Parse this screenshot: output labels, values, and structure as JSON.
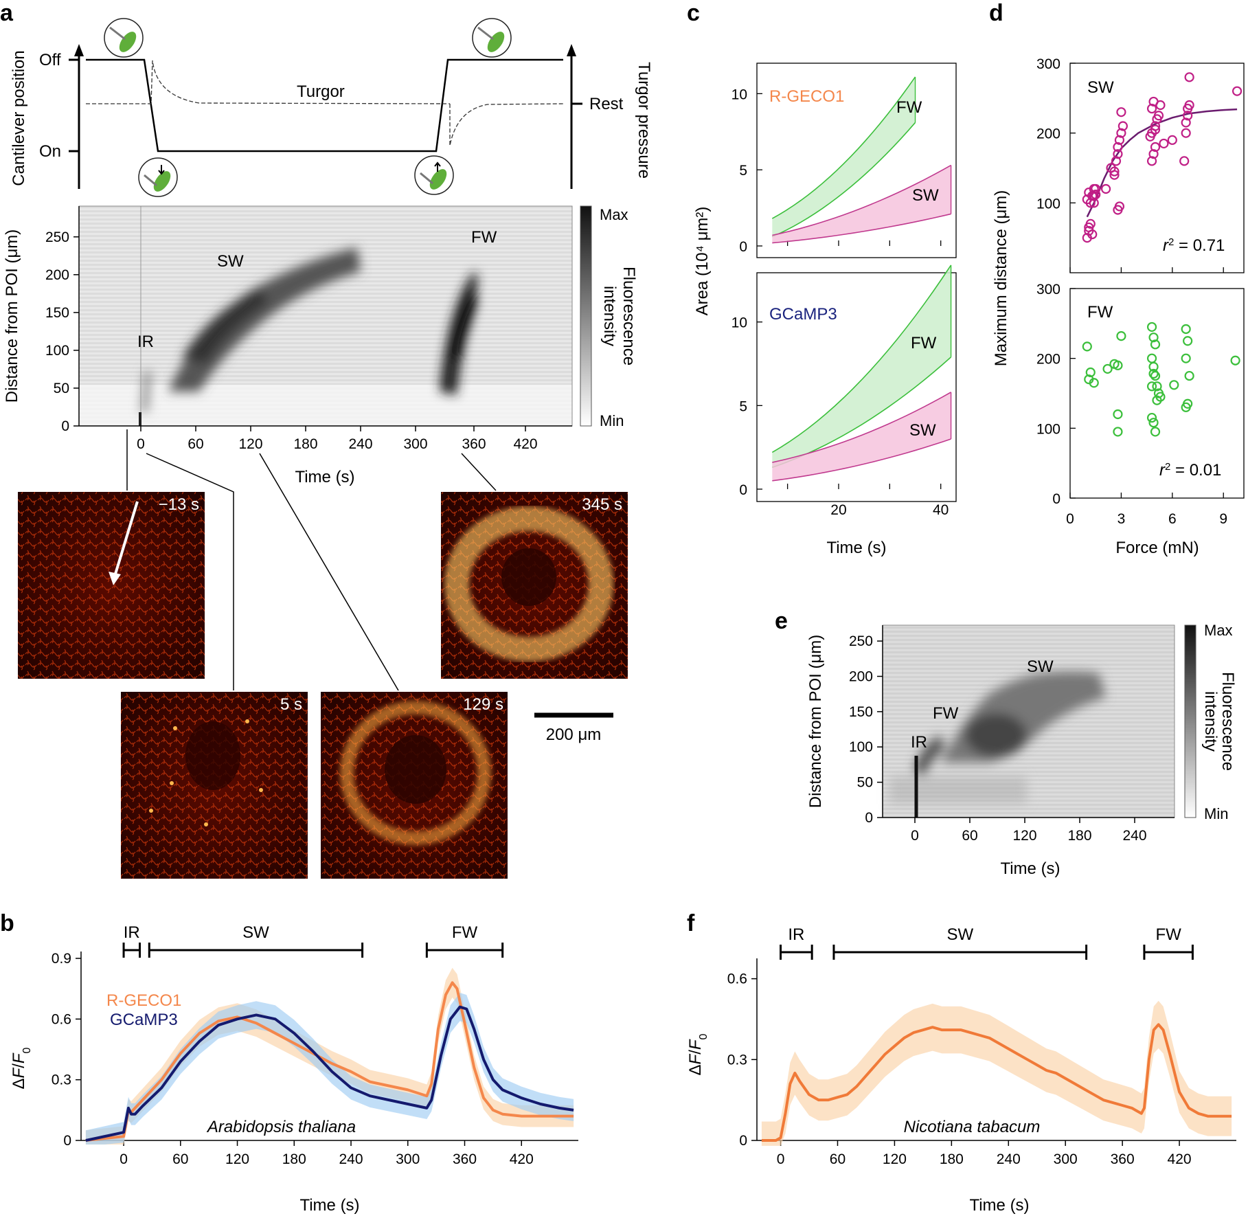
{
  "panel_letters": {
    "a": "a",
    "b": "b",
    "c": "c",
    "d": "d",
    "e": "e",
    "f": "f"
  },
  "panel_a": {
    "schematic": {
      "off": "Off",
      "on": "On",
      "left_axis": "Cantilever position",
      "right_axis": "Turgor pressure",
      "turgor": "Turgor",
      "rest": "Rest"
    },
    "kymograph": {
      "ylabel": "Distance from POI (μm)",
      "xlabel": "Time (s)",
      "yticks": [
        "0",
        "50",
        "100",
        "150",
        "200",
        "250"
      ],
      "xticks": [
        "0",
        "60",
        "120",
        "180",
        "240",
        "300",
        "360",
        "420"
      ],
      "labels": {
        "sw": "SW",
        "fw": "FW",
        "ir": "IR"
      },
      "colorbar": {
        "max": "Max",
        "min": "Min",
        "title_line1": "Fluorescence",
        "title_line2": "intensity"
      }
    },
    "images": [
      {
        "time": "−13 s"
      },
      {
        "time": "5 s"
      },
      {
        "time": "129 s"
      },
      {
        "time": "345 s"
      }
    ],
    "scalebar": "200 μm"
  },
  "chart_data": [
    {
      "id": "b",
      "type": "line",
      "xlabel": "Time (s)",
      "ylabel": "ΔF/F0",
      "xlim": [
        -45,
        480
      ],
      "ylim": [
        0,
        0.9
      ],
      "xticks": [
        "0",
        "60",
        "120",
        "180",
        "240",
        "300",
        "360",
        "420"
      ],
      "yticks": [
        "0",
        "0.3",
        "0.6",
        "0.9"
      ],
      "annotation": "Arabidopsis thaliana",
      "phases": [
        {
          "label": "IR",
          "start": 0,
          "end": 17
        },
        {
          "label": "SW",
          "start": 27,
          "end": 252
        },
        {
          "label": "FW",
          "start": 320,
          "end": 400
        }
      ],
      "series": [
        {
          "name": "R-GECO1",
          "color": "#f4874b",
          "x": [
            -40,
            -20,
            0,
            5,
            8,
            12,
            20,
            40,
            60,
            80,
            100,
            120,
            140,
            160,
            180,
            200,
            220,
            240,
            260,
            280,
            300,
            320,
            325,
            332,
            340,
            347,
            352,
            360,
            370,
            380,
            390,
            400,
            420,
            440,
            460,
            475
          ],
          "y": [
            0.0,
            0.01,
            0.02,
            0.15,
            0.14,
            0.16,
            0.2,
            0.3,
            0.43,
            0.53,
            0.59,
            0.61,
            0.58,
            0.53,
            0.48,
            0.43,
            0.38,
            0.34,
            0.29,
            0.27,
            0.25,
            0.22,
            0.28,
            0.55,
            0.72,
            0.78,
            0.75,
            0.58,
            0.36,
            0.21,
            0.15,
            0.13,
            0.12,
            0.12,
            0.12,
            0.12
          ],
          "band": 0.05
        },
        {
          "name": "GCaMP3",
          "color": "#141a6e",
          "x": [
            -40,
            -20,
            0,
            5,
            8,
            12,
            20,
            40,
            60,
            80,
            100,
            120,
            140,
            160,
            180,
            200,
            220,
            240,
            260,
            280,
            300,
            320,
            325,
            335,
            345,
            355,
            362,
            370,
            380,
            390,
            400,
            420,
            440,
            460,
            475
          ],
          "y": [
            0.0,
            0.02,
            0.04,
            0.16,
            0.13,
            0.13,
            0.17,
            0.26,
            0.39,
            0.49,
            0.57,
            0.6,
            0.62,
            0.6,
            0.53,
            0.44,
            0.34,
            0.26,
            0.22,
            0.2,
            0.18,
            0.16,
            0.2,
            0.42,
            0.6,
            0.66,
            0.65,
            0.55,
            0.4,
            0.3,
            0.25,
            0.21,
            0.18,
            0.16,
            0.15
          ],
          "band": 0.05
        }
      ]
    },
    {
      "id": "c",
      "type": "area",
      "xlabel": "Time (s)",
      "ylabel": "Area (10⁴ μm²)",
      "xticks": [
        "20",
        "40"
      ],
      "subplots": [
        {
          "title": "R-GECO1",
          "title_color": "#f4874b",
          "xlim": [
            4,
            43
          ],
          "ylim": [
            0,
            12
          ],
          "yticks": [
            "0",
            "5",
            "10"
          ],
          "series": [
            {
              "name": "FW",
              "x": [
                7,
                35
              ],
              "upper": [
                1.8,
                11.1
              ],
              "lower": [
                0.6,
                8.1
              ],
              "color": "#3bbf3b",
              "fill": "#cdeecd"
            },
            {
              "name": "SW",
              "x": [
                7,
                42
              ],
              "upper": [
                0.7,
                5.3
              ],
              "lower": [
                0.2,
                2.1
              ],
              "color": "#c0398e",
              "fill": "#f6c3dd"
            }
          ]
        },
        {
          "title": "GCaMP3",
          "title_color": "#1a237e",
          "xlim": [
            4,
            43
          ],
          "ylim": [
            0,
            12
          ],
          "yticks": [
            "0",
            "5",
            "10"
          ],
          "series": [
            {
              "name": "FW",
              "x": [
                7,
                42
              ],
              "upper": [
                2.2,
                13.4
              ],
              "lower": [
                1.3,
                7.9
              ],
              "color": "#3bbf3b",
              "fill": "#cdeecd"
            },
            {
              "name": "SW",
              "x": [
                7,
                42
              ],
              "upper": [
                1.6,
                5.8
              ],
              "lower": [
                0.5,
                3.0
              ],
              "color": "#c0398e",
              "fill": "#f6c3dd"
            }
          ]
        }
      ]
    },
    {
      "id": "d",
      "type": "scatter",
      "xlabel": "Force (mN)",
      "ylabel": "Maximum distance (μm)",
      "xticks": [
        "0",
        "3",
        "6",
        "9"
      ],
      "subplots": [
        {
          "title": "SW",
          "r2_label": "r",
          "r2_value": " = 0.71",
          "color": "#c01f86",
          "xlim": [
            0,
            10.2
          ],
          "ylim": [
            0,
            300
          ],
          "yticks": [
            "100",
            "200",
            "300"
          ],
          "fit": {
            "x": [
              1.0,
              1.5,
              2.0,
              2.5,
              3.0,
              3.5,
              4.0,
              5.0,
              6.0,
              7.0,
              8.0,
              9.0,
              9.8
            ],
            "y": [
              80,
              105,
              135,
              160,
              178,
              190,
              200,
              213,
              222,
              228,
              231,
              233,
              234
            ]
          },
          "x": [
            1.0,
            1.1,
            1.1,
            1.2,
            1.3,
            1.4,
            1.4,
            1.5,
            1.0,
            1.1,
            1.2,
            1.3,
            1.4,
            1.5,
            2.1,
            2.4,
            2.6,
            2.7,
            2.8,
            2.8,
            2.9,
            3.0,
            3.1,
            3.0,
            2.9,
            2.8,
            4.8,
            4.9,
            5.0,
            4.7,
            4.8,
            5.0,
            5.1,
            5.2,
            5.3,
            4.9,
            4.8,
            5.0,
            5.5,
            6.0,
            6.7,
            6.8,
            6.9,
            6.9,
            7.0,
            7.0,
            6.8,
            9.8,
            2.6
          ],
          "y": [
            50,
            60,
            65,
            70,
            55,
            100,
            110,
            120,
            105,
            115,
            100,
            110,
            120,
            112,
            120,
            150,
            140,
            160,
            170,
            180,
            190,
            200,
            210,
            230,
            95,
            90,
            160,
            170,
            180,
            195,
            200,
            210,
            220,
            225,
            240,
            245,
            235,
            205,
            185,
            190,
            160,
            215,
            225,
            235,
            240,
            280,
            200,
            260,
            145
          ]
        },
        {
          "title": "FW",
          "r2_label": "r",
          "r2_value": " = 0.01",
          "color": "#3bbf3b",
          "xlim": [
            0,
            10.2
          ],
          "ylim": [
            0,
            300
          ],
          "yticks": [
            "0",
            "100",
            "200",
            "300"
          ],
          "x": [
            1.0,
            1.1,
            1.2,
            1.4,
            2.2,
            2.6,
            2.8,
            3.0,
            2.8,
            2.8,
            4.8,
            4.9,
            5.0,
            4.8,
            4.9,
            5.0,
            5.1,
            5.2,
            5.3,
            4.8,
            4.9,
            5.0,
            5.1,
            4.8,
            4.9,
            6.1,
            6.8,
            6.9,
            6.8,
            7.0,
            6.9,
            6.8,
            9.7
          ],
          "y": [
            217,
            170,
            180,
            165,
            185,
            192,
            190,
            232,
            120,
            95,
            245,
            230,
            220,
            200,
            188,
            175,
            160,
            150,
            145,
            115,
            108,
            95,
            140,
            160,
            178,
            162,
            242,
            225,
            200,
            175,
            135,
            130,
            197
          ]
        }
      ]
    },
    {
      "id": "f",
      "type": "line",
      "xlabel": "Time (s)",
      "ylabel": "ΔF/F0",
      "xlim": [
        -25,
        480
      ],
      "ylim": [
        0,
        0.65
      ],
      "xticks": [
        "0",
        "60",
        "120",
        "180",
        "240",
        "300",
        "360",
        "420"
      ],
      "yticks": [
        "0",
        "0.3",
        "0.6"
      ],
      "annotation": "Nicotiana tabacum",
      "phases": [
        {
          "label": "IR",
          "start": 0,
          "end": 33
        },
        {
          "label": "SW",
          "start": 56,
          "end": 322
        },
        {
          "label": "FW",
          "start": 383,
          "end": 434
        }
      ],
      "series": [
        {
          "name": "",
          "color": "#f07a38",
          "x": [
            -20,
            -5,
            0,
            5,
            10,
            15,
            20,
            30,
            40,
            50,
            60,
            70,
            80,
            90,
            100,
            110,
            120,
            130,
            140,
            150,
            160,
            170,
            180,
            190,
            200,
            210,
            220,
            230,
            240,
            250,
            260,
            270,
            280,
            290,
            300,
            310,
            320,
            330,
            340,
            350,
            360,
            370,
            375,
            380,
            383,
            388,
            393,
            398,
            403,
            410,
            420,
            430,
            440,
            450,
            460,
            475
          ],
          "y": [
            0.0,
            0.0,
            0.01,
            0.1,
            0.21,
            0.25,
            0.22,
            0.17,
            0.15,
            0.15,
            0.16,
            0.17,
            0.2,
            0.24,
            0.28,
            0.32,
            0.35,
            0.38,
            0.4,
            0.41,
            0.42,
            0.41,
            0.41,
            0.41,
            0.4,
            0.39,
            0.38,
            0.36,
            0.34,
            0.32,
            0.3,
            0.28,
            0.26,
            0.25,
            0.23,
            0.21,
            0.19,
            0.17,
            0.15,
            0.14,
            0.13,
            0.12,
            0.11,
            0.1,
            0.12,
            0.3,
            0.41,
            0.43,
            0.41,
            0.32,
            0.18,
            0.12,
            0.1,
            0.09,
            0.09,
            0.09
          ],
          "band": 0.07
        }
      ]
    }
  ],
  "panel_c_labels": {
    "fw": "FW",
    "sw": "SW"
  },
  "panel_e": {
    "ylabel": "Distance from POI (μm)",
    "xlabel": "Time (s)",
    "yticks": [
      "0",
      "50",
      "100",
      "150",
      "200",
      "250"
    ],
    "xticks": [
      "0",
      "60",
      "120",
      "180",
      "240"
    ],
    "labels": {
      "sw": "SW",
      "fw": "FW",
      "ir": "IR"
    },
    "colorbar": {
      "max": "Max",
      "min": "Min",
      "title_line1": "Fluorescence",
      "title_line2": "intensity"
    }
  },
  "legend_b": {
    "rgeco": "R-GECO1",
    "gcamp": "GCaMP3"
  }
}
